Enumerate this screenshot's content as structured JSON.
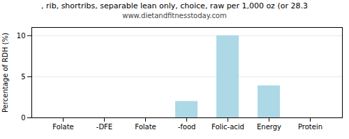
{
  "chart_data": {
    "type": "bar",
    "title": ", rib, shortribs, separable lean only, choice, raw per 1,000 oz (or 28.3",
    "subtitle": "www.dietandfitnesstoday.com",
    "categories": [
      "Folate",
      "-DFE",
      "Folate",
      "-food",
      "Folic-acid",
      "Energy",
      "Protein"
    ],
    "values": [
      0,
      0,
      0,
      2.0,
      10.0,
      3.9,
      0
    ],
    "color": "#add8e6",
    "ylabel": "Percentage of RDH (%)",
    "ylim": [
      0,
      11
    ],
    "yticks": [
      0,
      5,
      10
    ],
    "grid": true
  }
}
